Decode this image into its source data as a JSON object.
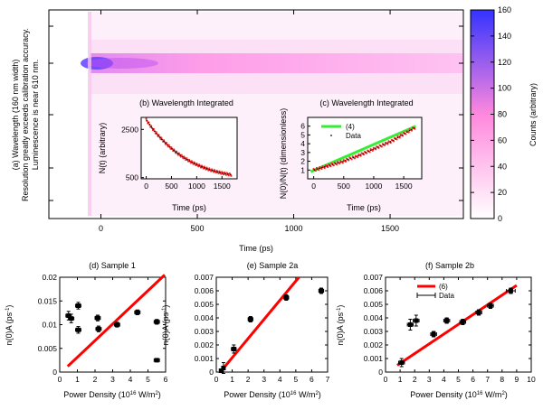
{
  "chart_data": [
    {
      "type": "heatmap",
      "panel": "main",
      "xlabel": "Time (ps)",
      "ylabel_lines": [
        "(a) Wavelength (160 nm width)",
        "Resolution greatly exceeds calibration accuracy.",
        "Luminescence is near 610 nm."
      ],
      "xlim": [
        -270,
        1880
      ],
      "xticks": [
        0,
        500,
        1000,
        1500
      ],
      "colorbar": {
        "label": "Counts (arbitrary)",
        "range": [
          0,
          160
        ],
        "ticks": [
          0,
          20,
          40,
          60,
          80,
          100,
          120,
          140,
          160
        ],
        "low_color": "#ffffff",
        "mid_color": "#ff66cc",
        "high_color": "#3333ff"
      },
      "band": {
        "onset_ps": -40,
        "peak_count": 150
      }
    },
    {
      "type": "line",
      "panel": "inset-b",
      "title": "(b) Wavelength Integrated",
      "xlabel": "Time (ps)",
      "ylabel": "N(t) (arbitrary)",
      "xlim": [
        -100,
        1800
      ],
      "ylim": [
        450,
        3000
      ],
      "xticks": [
        0,
        500,
        1000,
        1500
      ],
      "yticks": [
        500,
        2500
      ],
      "series": [
        {
          "values_x": [
            0,
            100,
            200,
            300,
            400,
            500,
            600,
            700,
            800,
            900,
            1000,
            1100,
            1200,
            1300,
            1400,
            1500,
            1600,
            1700
          ],
          "values_y": [
            2900,
            2600,
            2340,
            2110,
            1900,
            1710,
            1540,
            1390,
            1260,
            1140,
            1040,
            950,
            870,
            800,
            740,
            690,
            650,
            610
          ]
        }
      ]
    },
    {
      "type": "line",
      "panel": "inset-c",
      "title": "(c) Wavelength Integrated",
      "xlabel": "Time (ps)",
      "ylabel": "N(0)/N(t) (dimensionless)",
      "xlim": [
        -100,
        1800
      ],
      "ylim": [
        0,
        7
      ],
      "xticks": [
        0,
        500,
        1000,
        1500
      ],
      "yticks": [
        1,
        2,
        3,
        4,
        5,
        6
      ],
      "legend": [
        "(4)",
        "Data"
      ],
      "series": [
        {
          "name": "(4)",
          "values_x": [
            -50,
            1700
          ],
          "values_y": [
            0.8,
            6.0
          ]
        },
        {
          "name": "Data",
          "values_x": [
            0,
            100,
            200,
            300,
            400,
            500,
            600,
            700,
            800,
            900,
            1000,
            1100,
            1200,
            1300,
            1400,
            1500,
            1600,
            1700
          ],
          "values_y": [
            1.0,
            1.2,
            1.4,
            1.6,
            1.8,
            2.0,
            2.3,
            2.5,
            2.8,
            3.1,
            3.4,
            3.7,
            4.0,
            4.3,
            4.7,
            5.1,
            5.5,
            5.9
          ]
        }
      ]
    },
    {
      "type": "scatter",
      "panel": "d",
      "title": "(d) Sample 1",
      "xlabel_main": "Power Density (10",
      "xlabel_sup": "16",
      "xlabel_tail": " W/m",
      "xlabel_sup2": "2",
      "xlabel_end": ")",
      "ylabel_main": "n(0)A (ps",
      "ylabel_sup": "-1",
      "ylabel_end": ")",
      "xlim": [
        0,
        6
      ],
      "ylim": [
        0,
        0.02
      ],
      "xticks": [
        0,
        1,
        2,
        3,
        4,
        5,
        6
      ],
      "yticks": [
        0,
        0.005,
        0.01,
        0.015,
        0.02
      ],
      "ytick_labels": [
        "0",
        "0.005",
        "0.01",
        "0.015",
        "0.02"
      ],
      "fit_line": {
        "x": [
          0.45,
          5.95
        ],
        "y": [
          0.0012,
          0.0205
        ]
      },
      "points": [
        {
          "x": 0.5,
          "y": 0.0119,
          "xerr": 0.15,
          "yerr": 0.0009
        },
        {
          "x": 0.65,
          "y": 0.0113,
          "xerr": 0.15,
          "yerr": 0.0009
        },
        {
          "x": 1.05,
          "y": 0.014,
          "xerr": 0.15,
          "yerr": 0.0007
        },
        {
          "x": 1.05,
          "y": 0.0089,
          "xerr": 0.15,
          "yerr": 0.0007
        },
        {
          "x": 2.15,
          "y": 0.0114,
          "xerr": 0.15,
          "yerr": 0.0006
        },
        {
          "x": 2.2,
          "y": 0.0091,
          "xerr": 0.15,
          "yerr": 0.0006
        },
        {
          "x": 3.25,
          "y": 0.01,
          "xerr": 0.15,
          "yerr": 0.0005
        },
        {
          "x": 4.4,
          "y": 0.0126,
          "xerr": 0.15,
          "yerr": 0.0005
        },
        {
          "x": 5.5,
          "y": 0.0106,
          "xerr": 0.15,
          "yerr": 0.0005
        },
        {
          "x": 5.5,
          "y": 0.0025,
          "xerr": 0.15,
          "yerr": 0.0003
        }
      ]
    },
    {
      "type": "scatter",
      "panel": "e",
      "title": "(e) Sample 2a",
      "xlabel_main": "Power Density (10",
      "xlabel_sup": "16",
      "xlabel_tail": " W/m",
      "xlabel_sup2": "2",
      "xlabel_end": ")",
      "ylabel_main": "n(0)A (ps",
      "ylabel_sup": "-1",
      "ylabel_end": ")",
      "xlim": [
        0,
        7
      ],
      "ylim": [
        0,
        0.007
      ],
      "xticks": [
        0,
        1,
        2,
        3,
        4,
        5,
        6,
        7
      ],
      "yticks": [
        0,
        0.001,
        0.002,
        0.003,
        0.004,
        0.005,
        0.006,
        0.007
      ],
      "ytick_labels": [
        "0",
        "0.001",
        "0.002",
        "0.003",
        "0.004",
        "0.005",
        "0.006",
        "0.007"
      ],
      "fit_line": {
        "x": [
          0.25,
          5.2
        ],
        "y": [
          0.0,
          0.007
        ]
      },
      "points": [
        {
          "x": 0.3,
          "y": 0.0001,
          "xerr": 0.1,
          "yerr": 0.0001
        },
        {
          "x": 0.45,
          "y": 0.0003,
          "xerr": 0.1,
          "yerr": 0.0004
        },
        {
          "x": 1.1,
          "y": 0.0017,
          "xerr": 0.15,
          "yerr": 0.0003
        },
        {
          "x": 2.15,
          "y": 0.0039,
          "xerr": 0.15,
          "yerr": 0.0002
        },
        {
          "x": 4.4,
          "y": 0.0055,
          "xerr": 0.15,
          "yerr": 0.0002
        },
        {
          "x": 6.6,
          "y": 0.006,
          "xerr": 0.15,
          "yerr": 0.0002
        }
      ]
    },
    {
      "type": "scatter",
      "panel": "f",
      "title": "(f) Sample 2b",
      "xlabel_main": "Power Density (10",
      "xlabel_sup": "16",
      "xlabel_tail": " W/m",
      "xlabel_sup2": "2",
      "xlabel_end": ")",
      "ylabel_main": "n(0)A (ps",
      "ylabel_sup": "-1",
      "ylabel_end": ")",
      "xlim": [
        0,
        10
      ],
      "ylim": [
        0,
        0.007
      ],
      "xticks": [
        0,
        1,
        2,
        3,
        4,
        5,
        6,
        7,
        8,
        9,
        10
      ],
      "yticks": [
        0,
        0.001,
        0.002,
        0.003,
        0.004,
        0.005,
        0.006,
        0.007
      ],
      "ytick_labels": [
        "0",
        "0.001",
        "0.002",
        "0.003",
        "0.004",
        "0.005",
        "0.006",
        "0.007"
      ],
      "legend": [
        "(6)",
        "Data"
      ],
      "fit_line": {
        "x": [
          0.8,
          9.0
        ],
        "y": [
          0.0005,
          0.0064
        ]
      },
      "points": [
        {
          "x": 1.1,
          "y": 0.0007,
          "xerr": 0.2,
          "yerr": 0.0003
        },
        {
          "x": 1.7,
          "y": 0.0035,
          "xerr": 0.2,
          "yerr": 0.0004
        },
        {
          "x": 2.1,
          "y": 0.0038,
          "xerr": 0.2,
          "yerr": 0.0004
        },
        {
          "x": 3.3,
          "y": 0.0028,
          "xerr": 0.2,
          "yerr": 0.0002
        },
        {
          "x": 4.2,
          "y": 0.0038,
          "xerr": 0.2,
          "yerr": 0.0002
        },
        {
          "x": 5.3,
          "y": 0.0037,
          "xerr": 0.2,
          "yerr": 0.0002
        },
        {
          "x": 6.4,
          "y": 0.0044,
          "xerr": 0.2,
          "yerr": 0.0002
        },
        {
          "x": 7.2,
          "y": 0.0049,
          "xerr": 0.2,
          "yerr": 0.0002
        },
        {
          "x": 8.6,
          "y": 0.006,
          "xerr": 0.3,
          "yerr": 0.0002
        }
      ]
    }
  ],
  "colors": {
    "fit": "#ff0000",
    "theory_c": "#33ee33",
    "points_bc": "#ff2222",
    "marker": "#000000"
  }
}
